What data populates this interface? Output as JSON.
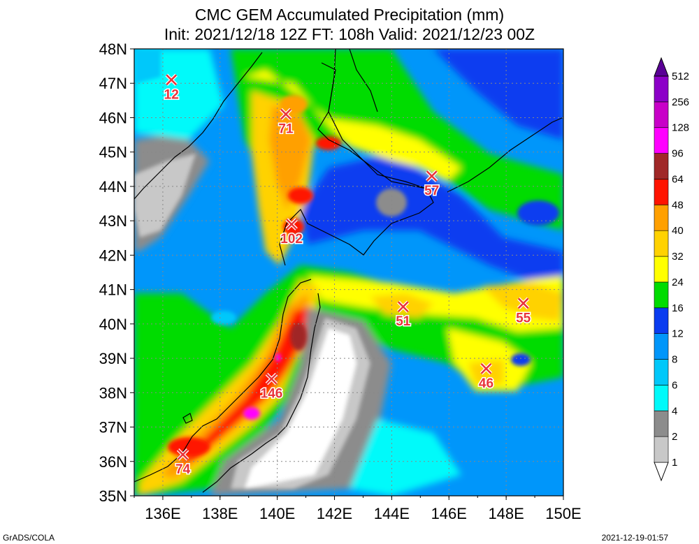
{
  "title": {
    "line1": "CMC GEM Accumulated Precipitation (mm)",
    "line2": "Init: 2021/12/18 12Z  FT: 108h  Valid: 2021/12/23 00Z"
  },
  "map": {
    "lat_labels": [
      "35N",
      "36N",
      "37N",
      "38N",
      "39N",
      "40N",
      "41N",
      "42N",
      "43N",
      "44N",
      "45N",
      "46N",
      "47N",
      "48N"
    ],
    "lon_labels": [
      "136E",
      "138E",
      "140E",
      "142E",
      "144E",
      "146E",
      "148E",
      "150E"
    ],
    "lat_range": [
      35,
      48
    ],
    "lon_range": [
      135,
      150
    ],
    "land_color": "#ffffff"
  },
  "stations": [
    {
      "label": "12",
      "lon": 136.3,
      "lat": 47.1
    },
    {
      "label": "71",
      "lon": 140.3,
      "lat": 46.1
    },
    {
      "label": "57",
      "lon": 145.4,
      "lat": 44.3
    },
    {
      "label": "102",
      "lon": 140.5,
      "lat": 42.9
    },
    {
      "label": "51",
      "lon": 144.4,
      "lat": 40.5
    },
    {
      "label": "55",
      "lon": 148.6,
      "lat": 40.6
    },
    {
      "label": "46",
      "lon": 147.3,
      "lat": 38.7
    },
    {
      "label": "146",
      "lon": 139.8,
      "lat": 38.4
    },
    {
      "label": "74",
      "lon": 136.7,
      "lat": 36.2
    }
  ],
  "colorbar": {
    "levels": [
      "1",
      "2",
      "4",
      "6",
      "8",
      "12",
      "16",
      "24",
      "32",
      "40",
      "48",
      "64",
      "96",
      "128",
      "256",
      "512"
    ],
    "colors": [
      "#ffffff",
      "#c8c8c8",
      "#8c8c8c",
      "#00fafa",
      "#00c8fa",
      "#0096fa",
      "#0a3cf0",
      "#00dc00",
      "#ffff00",
      "#ffd200",
      "#ffa000",
      "#ff1400",
      "#a02828",
      "#ff00ff",
      "#c800c8",
      "#8c00c8",
      "#5a0096"
    ]
  },
  "footer": {
    "left": "GrADS/COLA",
    "right": "2021-12-19-01:57"
  }
}
